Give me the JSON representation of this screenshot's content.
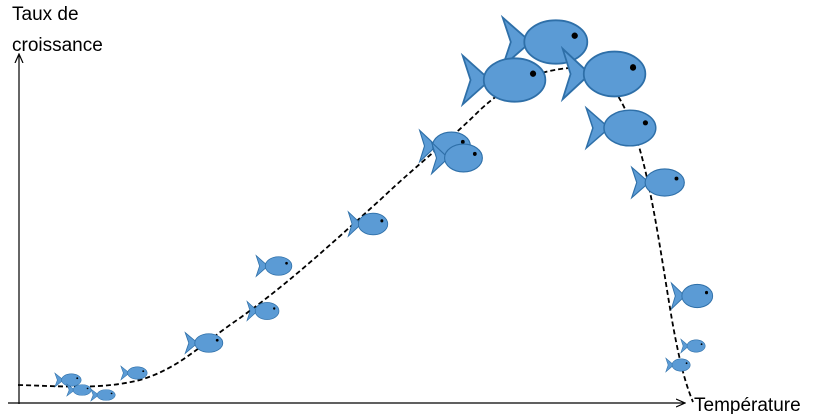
{
  "y_axis": {
    "label_lines": [
      "Taux de",
      "croissance"
    ]
  },
  "x_axis": {
    "label": "Température"
  }
}
